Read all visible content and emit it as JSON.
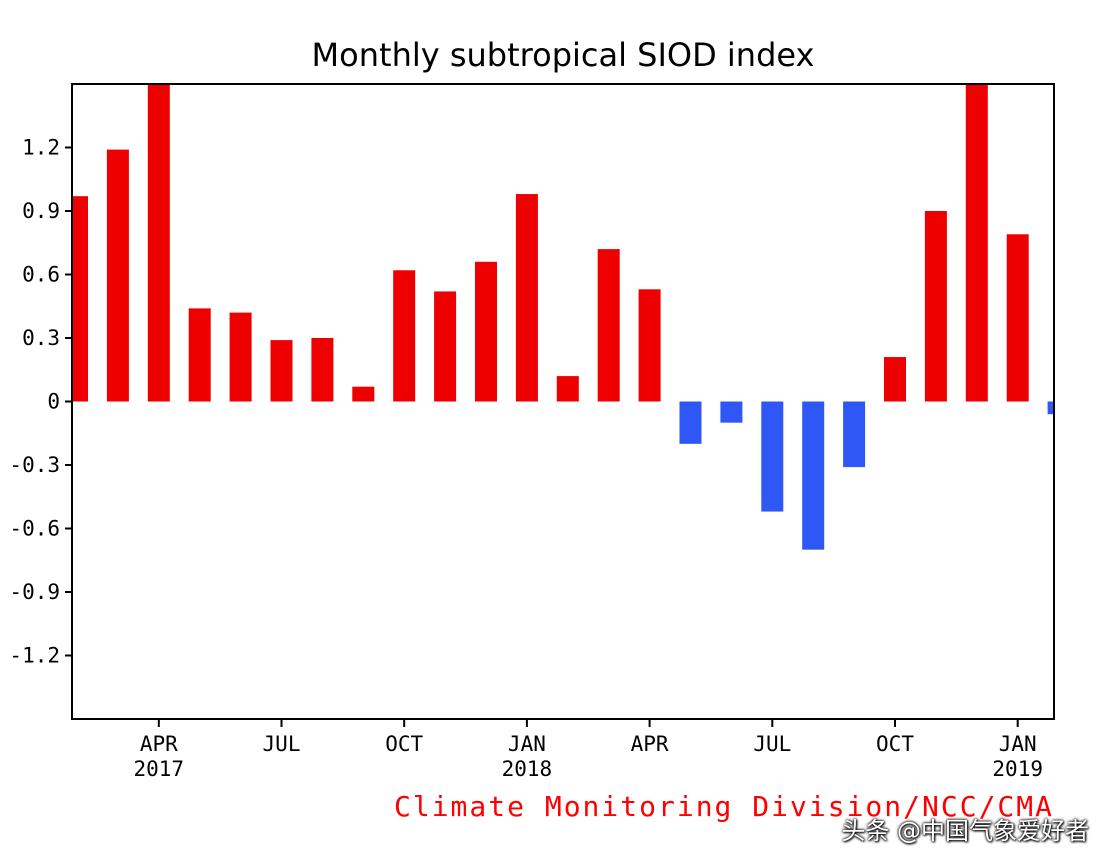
{
  "chart_data": {
    "type": "bar",
    "title": "Monthly subtropical SIOD index",
    "credit": "Climate Monitoring Division/NCC/CMA",
    "ylim": [
      -1.5,
      1.5
    ],
    "yticks": [
      -1.2,
      -0.9,
      -0.6,
      -0.3,
      0,
      0.3,
      0.6,
      0.9,
      1.2
    ],
    "ytick_labels": [
      "-1.2",
      "-0.9",
      "-0.6",
      "-0.3",
      "0",
      "0.3",
      "0.6",
      "0.9",
      "1.2"
    ],
    "x_start": "2017-02",
    "values": [
      0.97,
      1.19,
      1.5,
      0.44,
      0.42,
      0.29,
      0.3,
      0.07,
      0.62,
      0.52,
      0.66,
      0.98,
      0.12,
      0.72,
      0.53,
      -0.2,
      -0.1,
      -0.52,
      -0.7,
      -0.31,
      0.21,
      0.9,
      1.5,
      0.79,
      -0.06
    ],
    "xticks": [
      {
        "index": 2,
        "month": "APR",
        "year": "2017"
      },
      {
        "index": 5,
        "month": "JUL",
        "year": ""
      },
      {
        "index": 8,
        "month": "OCT",
        "year": ""
      },
      {
        "index": 11,
        "month": "JAN",
        "year": "2018"
      },
      {
        "index": 14,
        "month": "APR",
        "year": ""
      },
      {
        "index": 17,
        "month": "JUL",
        "year": ""
      },
      {
        "index": 20,
        "month": "OCT",
        "year": ""
      },
      {
        "index": 23,
        "month": "JAN",
        "year": "2019"
      }
    ],
    "colors": {
      "positive": "#ee0000",
      "negative": "#2e57f5"
    }
  },
  "watermark": "头条 @中国气象爱好者"
}
